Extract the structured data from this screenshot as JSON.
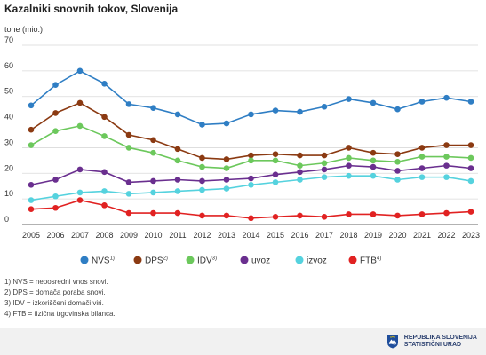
{
  "title": "Kazalniki snovnih tokov, Slovenija",
  "chart_data": {
    "type": "line",
    "ylabel": "tone (mio.)",
    "xlabel": "",
    "ylim": [
      0,
      70
    ],
    "yticks": [
      0,
      10,
      20,
      30,
      40,
      50,
      60,
      70
    ],
    "grid": true,
    "legend": "bottom",
    "categories": [
      "2005",
      "2006",
      "2007",
      "2008",
      "2009",
      "2010",
      "2011",
      "2012",
      "2013",
      "2014",
      "2015",
      "2016",
      "2017",
      "2018",
      "2019",
      "2020",
      "2021",
      "2022",
      "2023"
    ],
    "series": [
      {
        "name": "NVS",
        "sup": "1)",
        "color": "#2f7ec4",
        "values": [
          46.5,
          54.5,
          60,
          55,
          47,
          45.5,
          43,
          39,
          39.5,
          43,
          44.5,
          44,
          46,
          49,
          47.5,
          45,
          48,
          49.5,
          48
        ]
      },
      {
        "name": "DPS",
        "sup": "2)",
        "color": "#8b3a12",
        "values": [
          37,
          43.5,
          47.5,
          42,
          35,
          33,
          29.5,
          26,
          25.5,
          27,
          27.5,
          27,
          27,
          30,
          28,
          27.5,
          30,
          31,
          31
        ]
      },
      {
        "name": "IDV",
        "sup": "3)",
        "color": "#6cc85c",
        "values": [
          31,
          36.5,
          38.5,
          34.5,
          30,
          28,
          25,
          22.5,
          22,
          25,
          25,
          23,
          24,
          26,
          25,
          24.5,
          26.5,
          26.5,
          26
        ]
      },
      {
        "name": "uvoz",
        "sup": "",
        "color": "#6a2f8f",
        "values": [
          15.5,
          17.5,
          21.5,
          20.5,
          16.5,
          17,
          17.5,
          17,
          17.5,
          18,
          19.5,
          20.5,
          21.5,
          23,
          22.5,
          21,
          22,
          23,
          22
        ]
      },
      {
        "name": "izvoz",
        "sup": "",
        "color": "#55d2de",
        "values": [
          9.5,
          11,
          12.5,
          13,
          12,
          12.5,
          13,
          13.5,
          14,
          15.5,
          16.5,
          17.5,
          18.5,
          19,
          19,
          17.5,
          18.5,
          18.5,
          17
        ]
      },
      {
        "name": "FTB",
        "sup": "4)",
        "color": "#e12222",
        "values": [
          6,
          6.5,
          9.5,
          7.5,
          4.5,
          4.5,
          4.5,
          3.5,
          3.5,
          2.5,
          3,
          3.5,
          3,
          4,
          4,
          3.5,
          4,
          4.5,
          5
        ]
      }
    ]
  },
  "notes": [
    "1) NVS = neposredni vnos snovi.",
    "2) DPS = domača poraba snovi.",
    "3) IDV = izkoriščeni domači viri.",
    "4) FTB = fizična trgovinska bilanca."
  ],
  "logo": {
    "line1": "REPUBLIKA SLOVENIJA",
    "line2": "STATISTIČNI URAD",
    "color": "#1f4e9c"
  }
}
